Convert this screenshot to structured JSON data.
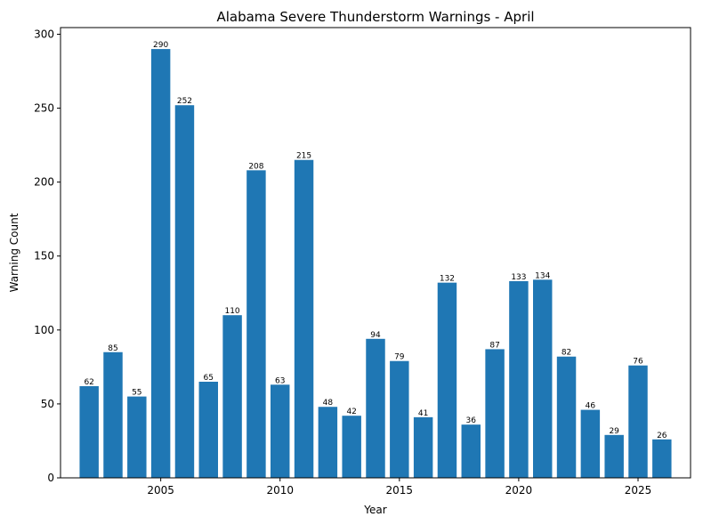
{
  "chart_data": {
    "type": "bar",
    "title": "Alabama Severe Thunderstorm Warnings - April",
    "xlabel": "Year",
    "ylabel": "Warning Count",
    "x": [
      2002,
      2003,
      2004,
      2005,
      2006,
      2007,
      2008,
      2009,
      2010,
      2011,
      2012,
      2013,
      2014,
      2015,
      2016,
      2017,
      2018,
      2019,
      2020,
      2021,
      2022,
      2023,
      2024,
      2025,
      2026
    ],
    "values": [
      62,
      85,
      55,
      290,
      252,
      65,
      110,
      208,
      63,
      215,
      48,
      42,
      94,
      79,
      41,
      132,
      36,
      87,
      133,
      134,
      82,
      46,
      29,
      76,
      26
    ],
    "xlim": [
      2000.8,
      2027.2
    ],
    "ylim": [
      0,
      304.5
    ],
    "xticks": [
      2005,
      2010,
      2015,
      2020,
      2025
    ],
    "yticks": [
      0,
      50,
      100,
      150,
      200,
      250,
      300
    ],
    "bar_width": 0.8,
    "bar_color": "#1f77b4",
    "grid": false,
    "legend": "none"
  }
}
